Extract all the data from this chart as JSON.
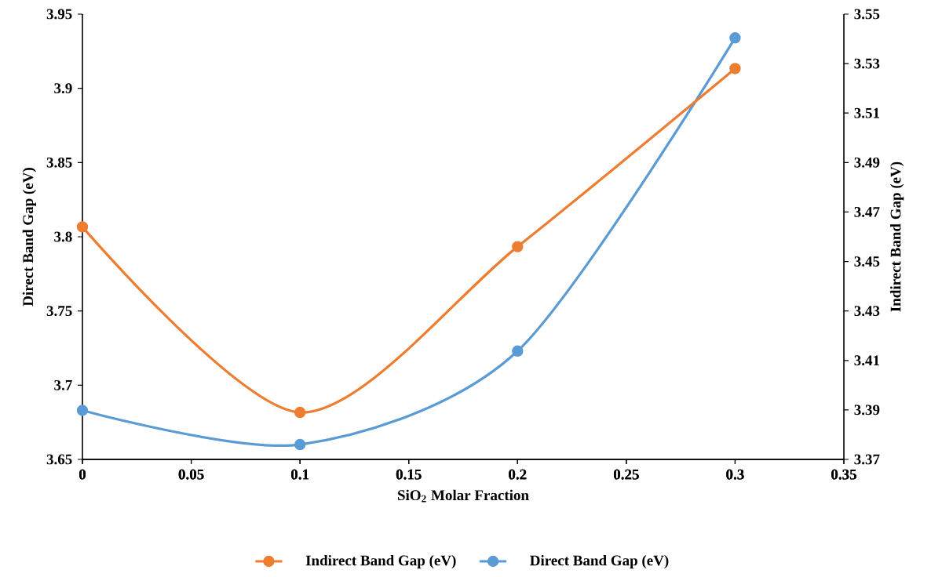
{
  "chart_data": {
    "type": "line",
    "xlabel": "SiO$_{2}$ Molar Fraction",
    "ylabel": "Direct Band Gap (eV)",
    "y2label": "Indirect Band Gap (eV)",
    "xlim": [
      0,
      0.35
    ],
    "xticks": [
      0,
      0.05,
      0.1,
      0.15,
      0.2,
      0.25,
      0.3,
      0.35
    ],
    "ylim": [
      3.65,
      3.95
    ],
    "yticks": [
      3.65,
      3.7,
      3.75,
      3.8,
      3.85,
      3.9,
      3.95
    ],
    "y2lim": [
      3.37,
      3.55
    ],
    "y2ticks": [
      3.37,
      3.39,
      3.41,
      3.43,
      3.45,
      3.47,
      3.49,
      3.51,
      3.53,
      3.55
    ],
    "marker": "circle",
    "legend": "bottom",
    "series": [
      {
        "name": "Indirect Band Gap (eV)",
        "color": "#ed7d31",
        "axis": "y2",
        "x": [
          0,
          0.1,
          0.2,
          0.3
        ],
        "values": [
          3.464,
          3.389,
          3.456,
          3.528
        ]
      },
      {
        "name": "Direct Band Gap (eV)",
        "color": "#5b9bd5",
        "x": [
          0,
          0.1,
          0.2,
          0.3
        ],
        "values": [
          3.683,
          3.66,
          3.723,
          3.934
        ]
      }
    ]
  }
}
